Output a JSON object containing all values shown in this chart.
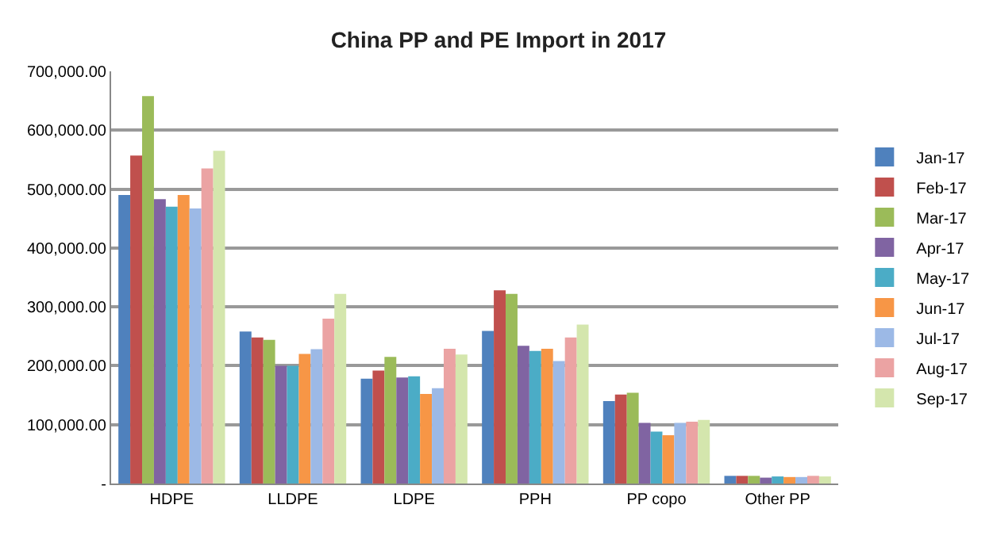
{
  "chart_data": {
    "type": "bar",
    "title": "China PP and PE Import in 2017",
    "categories": [
      "HDPE",
      "LLDPE",
      "LDPE",
      "PPH",
      "PP copo",
      "Other PP"
    ],
    "series": [
      {
        "name": "Jan-17",
        "color": "#4f81bd",
        "values": [
          490000,
          258000,
          178000,
          259000,
          140000,
          13000
        ]
      },
      {
        "name": "Feb-17",
        "color": "#c0504d",
        "values": [
          557000,
          248000,
          192000,
          328000,
          151000,
          13000
        ]
      },
      {
        "name": "Mar-17",
        "color": "#9bbb59",
        "values": [
          658000,
          244000,
          215000,
          322000,
          154000,
          13000
        ]
      },
      {
        "name": "Apr-17",
        "color": "#8064a2",
        "values": [
          483000,
          200000,
          180000,
          234000,
          103000,
          10000
        ]
      },
      {
        "name": "May-17",
        "color": "#4bacc6",
        "values": [
          470000,
          200000,
          182000,
          225000,
          88000,
          12000
        ]
      },
      {
        "name": "Jun-17",
        "color": "#f79646",
        "values": [
          490000,
          220000,
          152000,
          229000,
          82000,
          11000
        ]
      },
      {
        "name": "Jul-17",
        "color": "#9cb9e6",
        "values": [
          467000,
          228000,
          162000,
          208000,
          103000,
          11000
        ]
      },
      {
        "name": "Aug-17",
        "color": "#eba3a3",
        "values": [
          535000,
          280000,
          229000,
          248000,
          105000,
          13000
        ]
      },
      {
        "name": "Sep-17",
        "color": "#d4e6ad",
        "values": [
          565000,
          322000,
          219000,
          270000,
          108000,
          12000
        ]
      }
    ],
    "ylim": [
      0,
      700000
    ],
    "yticks": [
      {
        "value": 0,
        "label": "-"
      },
      {
        "value": 100000,
        "label": "100,000.00"
      },
      {
        "value": 200000,
        "label": "200,000.00"
      },
      {
        "value": 300000,
        "label": "300,000.00"
      },
      {
        "value": 400000,
        "label": "400,000.00"
      },
      {
        "value": 500000,
        "label": "500,000.00"
      },
      {
        "value": 600000,
        "label": "600,000.00"
      },
      {
        "value": 700000,
        "label": "700,000.00"
      }
    ],
    "grid": "y",
    "legend": "right"
  }
}
